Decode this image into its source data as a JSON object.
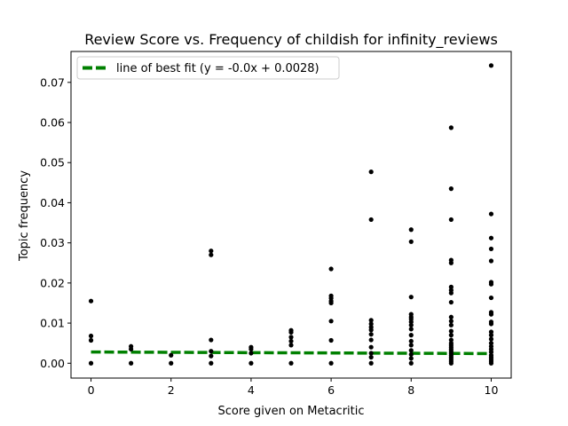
{
  "chart_data": {
    "type": "scatter",
    "title": "Review Score vs. Frequency of childish for infinity_reviews",
    "xlabel": "Score given on Metacritic",
    "ylabel": "Topic frequency",
    "xlim": [
      -0.5,
      10.5
    ],
    "ylim": [
      -0.0037,
      0.0777
    ],
    "x_ticks": [
      0,
      2,
      4,
      6,
      8,
      10
    ],
    "x_tick_labels": [
      "0",
      "2",
      "4",
      "6",
      "8",
      "10"
    ],
    "y_ticks": [
      0.0,
      0.01,
      0.02,
      0.03,
      0.04,
      0.05,
      0.06,
      0.07
    ],
    "y_tick_labels": [
      "0.00",
      "0.01",
      "0.02",
      "0.03",
      "0.04",
      "0.05",
      "0.06",
      "0.07"
    ],
    "grid": false,
    "legend_position": "top-left",
    "series": [
      {
        "kind": "scatter",
        "color": "#000000",
        "points": [
          [
            0,
            0
          ],
          [
            0,
            0.0057
          ],
          [
            0,
            0.0068
          ],
          [
            0,
            0.0155
          ],
          [
            1,
            0
          ],
          [
            1,
            0.0035
          ],
          [
            1,
            0.0042
          ],
          [
            2,
            0
          ],
          [
            2,
            0.002
          ],
          [
            3,
            0
          ],
          [
            3,
            0.0018
          ],
          [
            3,
            0.003
          ],
          [
            3,
            0.0058
          ],
          [
            3,
            0.027
          ],
          [
            3,
            0.028
          ],
          [
            4,
            0
          ],
          [
            4,
            0.0025
          ],
          [
            4,
            0.0035
          ],
          [
            4,
            0.004
          ],
          [
            5,
            0
          ],
          [
            5,
            0.0045
          ],
          [
            5,
            0.0055
          ],
          [
            5,
            0.0065
          ],
          [
            5,
            0.0077
          ],
          [
            5,
            0.0082
          ],
          [
            6,
            0
          ],
          [
            6,
            0.0057
          ],
          [
            6,
            0.0105
          ],
          [
            6,
            0.015
          ],
          [
            6,
            0.0155
          ],
          [
            6,
            0.0162
          ],
          [
            6,
            0.0168
          ],
          [
            6,
            0.0235
          ],
          [
            7,
            0
          ],
          [
            7,
            0.0015
          ],
          [
            7,
            0.0025
          ],
          [
            7,
            0.004
          ],
          [
            7,
            0.0058
          ],
          [
            7,
            0.0072
          ],
          [
            7,
            0.0083
          ],
          [
            7,
            0.009
          ],
          [
            7,
            0.0098
          ],
          [
            7,
            0.0107
          ],
          [
            7,
            0.0358
          ],
          [
            7,
            0.0477
          ],
          [
            8,
            0
          ],
          [
            8,
            0.0012
          ],
          [
            8,
            0.0022
          ],
          [
            8,
            0.0032
          ],
          [
            8,
            0.0045
          ],
          [
            8,
            0.0055
          ],
          [
            8,
            0.007
          ],
          [
            8,
            0.0085
          ],
          [
            8,
            0.0095
          ],
          [
            8,
            0.0103
          ],
          [
            8,
            0.011
          ],
          [
            8,
            0.0115
          ],
          [
            8,
            0.0122
          ],
          [
            8,
            0.0165
          ],
          [
            8,
            0.0303
          ],
          [
            8,
            0.0333
          ],
          [
            9,
            0
          ],
          [
            9,
            0.0005
          ],
          [
            9,
            0.001
          ],
          [
            9,
            0.0015
          ],
          [
            9,
            0.002
          ],
          [
            9,
            0.0025
          ],
          [
            9,
            0.003
          ],
          [
            9,
            0.0035
          ],
          [
            9,
            0.004
          ],
          [
            9,
            0.0045
          ],
          [
            9,
            0.005
          ],
          [
            9,
            0.0058
          ],
          [
            9,
            0.007
          ],
          [
            9,
            0.008
          ],
          [
            9,
            0.0095
          ],
          [
            9,
            0.0105
          ],
          [
            9,
            0.0115
          ],
          [
            9,
            0.0152
          ],
          [
            9,
            0.0175
          ],
          [
            9,
            0.0182
          ],
          [
            9,
            0.019
          ],
          [
            9,
            0.025
          ],
          [
            9,
            0.0257
          ],
          [
            9,
            0.0358
          ],
          [
            9,
            0.0435
          ],
          [
            9,
            0.0587
          ],
          [
            10,
            0
          ],
          [
            10,
            0.0005
          ],
          [
            10,
            0.001
          ],
          [
            10,
            0.0015
          ],
          [
            10,
            0.002
          ],
          [
            10,
            0.0028
          ],
          [
            10,
            0.0035
          ],
          [
            10,
            0.0042
          ],
          [
            10,
            0.005
          ],
          [
            10,
            0.006
          ],
          [
            10,
            0.007
          ],
          [
            10,
            0.0078
          ],
          [
            10,
            0.0098
          ],
          [
            10,
            0.0103
          ],
          [
            10,
            0.0122
          ],
          [
            10,
            0.0127
          ],
          [
            10,
            0.0163
          ],
          [
            10,
            0.0197
          ],
          [
            10,
            0.0202
          ],
          [
            10,
            0.0255
          ],
          [
            10,
            0.0285
          ],
          [
            10,
            0.0312
          ],
          [
            10,
            0.0372
          ],
          [
            10,
            0.0742
          ]
        ]
      },
      {
        "kind": "line",
        "name": "line of best fit (y = -0.0x + 0.0028)",
        "color": "#008000",
        "dash": "dashed",
        "slope": -4e-05,
        "intercept": 0.0028
      }
    ]
  }
}
